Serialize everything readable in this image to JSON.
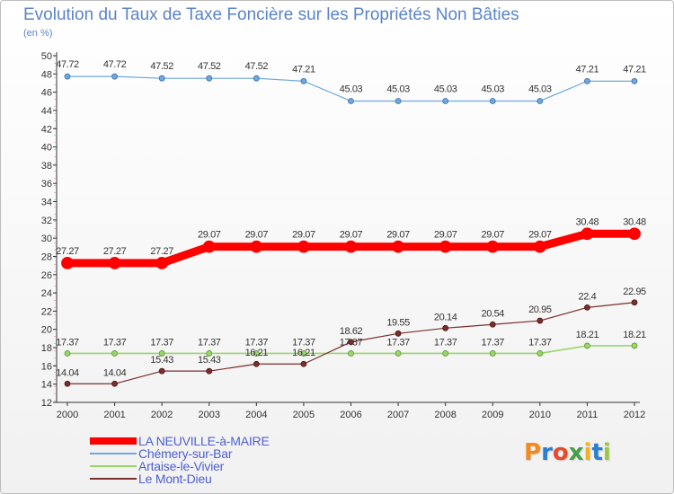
{
  "title": "Evolution du Taux de Taxe Foncière sur les Propriétés Non Bâties",
  "subtitle": "(en %)",
  "logo": {
    "text": "Proxiti",
    "colors": [
      "#f28a1c",
      "#2a7fd0",
      "#e94a2a",
      "#43a047",
      "#f6b21b",
      "#2a7fd0",
      "#9bc93d"
    ]
  },
  "chart_data": {
    "type": "line",
    "title": "Evolution du Taux de Taxe Foncière sur les Propriétés Non Bâties",
    "ylabel": "(en %)",
    "xlabel": "",
    "ylim": [
      12,
      50
    ],
    "yticks": [
      12,
      14,
      16,
      18,
      20,
      22,
      24,
      26,
      28,
      30,
      32,
      34,
      36,
      38,
      40,
      42,
      44,
      46,
      48,
      50
    ],
    "categories": [
      "2000",
      "2001",
      "2002",
      "2003",
      "2004",
      "2005",
      "2006",
      "2007",
      "2008",
      "2009",
      "2010",
      "2011",
      "2012"
    ],
    "series": [
      {
        "name": "LA NEUVILLE-à-MAIRE",
        "color": "#ff0000",
        "values": [
          27.27,
          27.27,
          27.27,
          29.07,
          29.07,
          29.07,
          29.07,
          29.07,
          29.07,
          29.07,
          29.07,
          30.48,
          30.48
        ],
        "labels": [
          "27.27",
          "27.27",
          "27.27",
          "29.07",
          "29.07",
          "29.07",
          "29.07",
          "29.07",
          "29.07",
          "29.07",
          "29.07",
          "30.48",
          "30.48"
        ]
      },
      {
        "name": "Chémery-sur-Bar",
        "color": "#6fa8dc",
        "values": [
          47.72,
          47.72,
          47.52,
          47.52,
          47.52,
          47.21,
          45.03,
          45.03,
          45.03,
          45.03,
          45.03,
          47.21,
          47.21
        ],
        "labels": [
          "47.72",
          "47.72",
          "47.52",
          "47.52",
          "47.52",
          "47.21",
          "45.03",
          "45.03",
          "45.03",
          "45.03",
          "45.03",
          "47.21",
          "47.21"
        ]
      },
      {
        "name": "Artaise-le-Vivier",
        "color": "#9ad56a",
        "values": [
          17.37,
          17.37,
          17.37,
          17.37,
          17.37,
          17.37,
          17.37,
          17.37,
          17.37,
          17.37,
          17.37,
          18.21,
          18.21
        ],
        "labels": [
          "17.37",
          "17.37",
          "17.37",
          "17.37",
          "17.37",
          "17.37",
          "17.37",
          "17.37",
          "17.37",
          "17.37",
          "17.37",
          "18.21",
          "18.21"
        ]
      },
      {
        "name": "Le Mont-Dieu",
        "color": "#7a2e2e",
        "values": [
          14.04,
          14.04,
          15.43,
          15.43,
          16.21,
          16.21,
          18.62,
          19.55,
          20.14,
          20.54,
          20.95,
          22.4,
          22.95
        ],
        "labels": [
          "14.04",
          "14.04",
          "15.43",
          "15.43",
          "16.21",
          "16.21",
          "18.62",
          "19.55",
          "20.14",
          "20.54",
          "20.95",
          "22.4",
          "22.95"
        ]
      }
    ],
    "legend_position": "bottom-left",
    "grid": false
  }
}
